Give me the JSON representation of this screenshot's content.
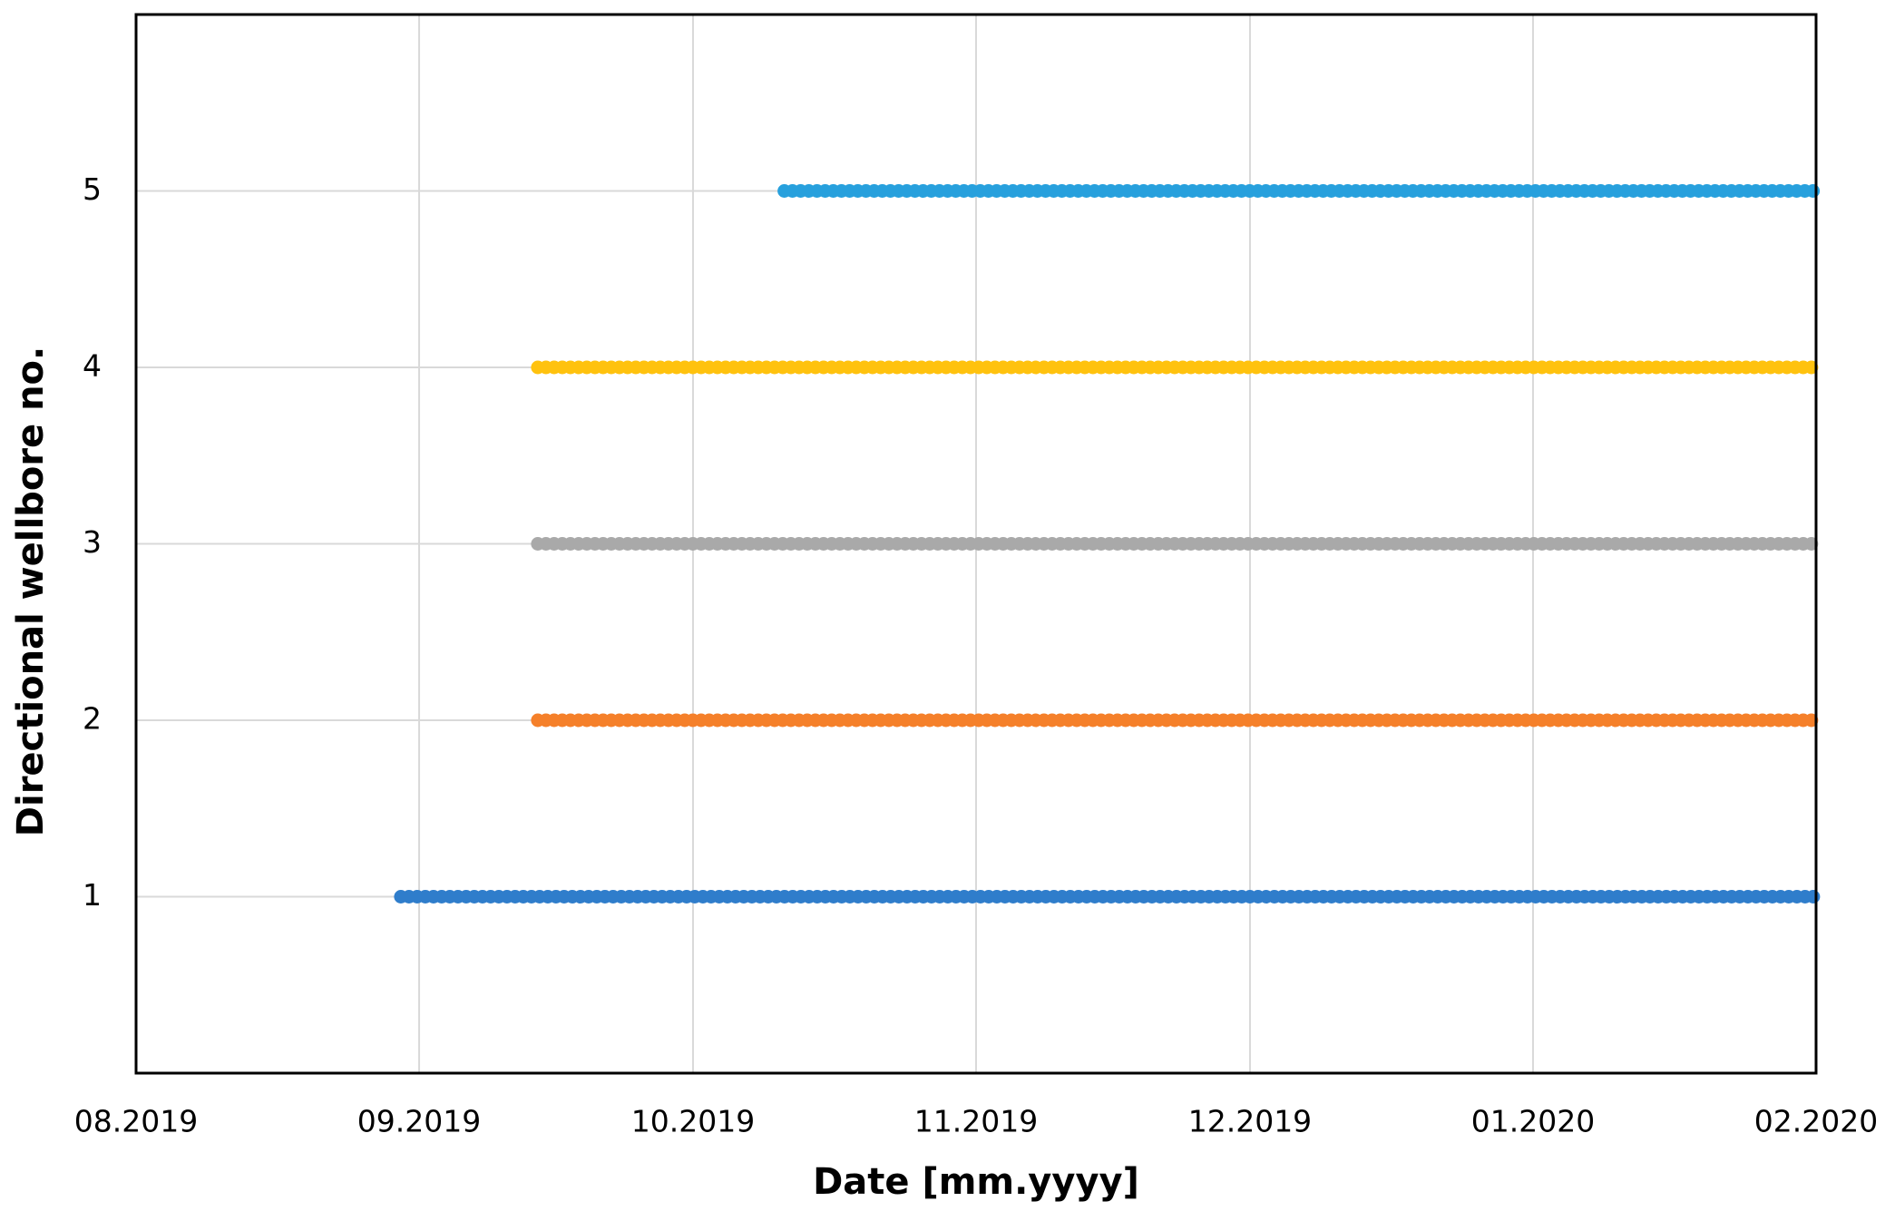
{
  "chart_data": {
    "type": "scatter",
    "x_label": "Date [mm.yyyy]",
    "y_label": "Directional wellbore no.",
    "xlim": [
      "2019-08-01",
      "2020-02-01"
    ],
    "xticks": [
      {
        "value": "2019-08-01",
        "label": "08.2019"
      },
      {
        "value": "2019-09-01",
        "label": "09.2019"
      },
      {
        "value": "2019-10-01",
        "label": "10.2019"
      },
      {
        "value": "2019-11-01",
        "label": "11.2019"
      },
      {
        "value": "2019-12-01",
        "label": "12.2019"
      },
      {
        "value": "2020-01-01",
        "label": "01.2020"
      },
      {
        "value": "2020-02-01",
        "label": "02.2020"
      }
    ],
    "ylim": [
      0,
      6
    ],
    "yticks": [
      1,
      2,
      3,
      4,
      5
    ],
    "grid": true,
    "series": [
      {
        "color": "#2f7dcb",
        "x": [
          "2019-08-30",
          "2020-02-01"
        ],
        "values": [
          1,
          1
        ]
      },
      {
        "color": "#f5802a",
        "x": [
          "2019-09-14",
          "2020-02-01"
        ],
        "values": [
          2,
          2
        ]
      },
      {
        "color": "#a9a9a9",
        "x": [
          "2019-09-14",
          "2020-02-01"
        ],
        "values": [
          3,
          3
        ]
      },
      {
        "color": "#ffc20e",
        "x": [
          "2019-09-14",
          "2020-02-01"
        ],
        "values": [
          4,
          4
        ]
      },
      {
        "color": "#27a0dd",
        "x": [
          "2019-10-11",
          "2020-02-01"
        ],
        "values": [
          5,
          5
        ]
      }
    ]
  }
}
